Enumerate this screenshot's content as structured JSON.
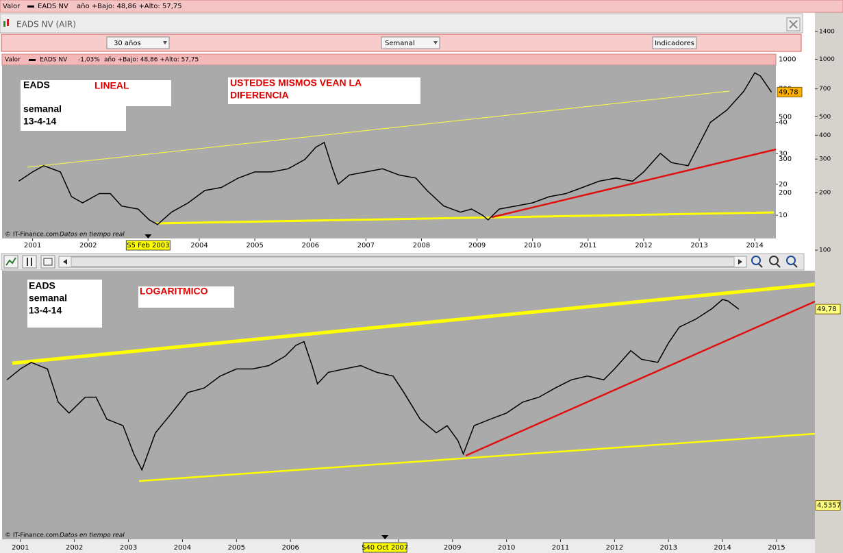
{
  "header_bar": {
    "label": "Valor",
    "symbol": "EADS NV",
    "range": "año +Bajo: 48,86 +Alto: 57,75"
  },
  "window": {
    "title": "EADS NV (AIR)"
  },
  "toolbar": {
    "period": "30 años",
    "interval": "Semanal",
    "indicators_button": "Indicadores"
  },
  "outer_axis": {
    "log": true,
    "ylim": [
      96,
      1595
    ],
    "yticks": [
      100,
      200,
      300,
      400,
      500,
      700,
      1000,
      1400
    ]
  },
  "charts": [
    {
      "type": "line",
      "color": "#000000",
      "header": {
        "label": "Valor",
        "symbol": "EADS NV",
        "change": "-1,03%",
        "range": "año +Bajo: 48,86 +Alto: 57,75"
      },
      "notes": [
        "EADS",
        "LINEAL",
        "semanal",
        "13-4-14",
        "USTEDES MISMOS  VEAN  LA",
        "DIFERENCIA"
      ],
      "x": [
        2000.75,
        2001.0,
        2001.2,
        2001.5,
        2001.7,
        2001.9,
        2002.2,
        2002.4,
        2002.6,
        2002.9,
        2003.1,
        2003.25,
        2003.5,
        2003.8,
        2004.1,
        2004.4,
        2004.7,
        2005.0,
        2005.3,
        2005.6,
        2005.9,
        2006.1,
        2006.25,
        2006.4,
        2006.5,
        2006.7,
        2007.0,
        2007.3,
        2007.6,
        2007.9,
        2008.1,
        2008.4,
        2008.7,
        2008.9,
        2009.1,
        2009.2,
        2009.4,
        2009.7,
        2010.0,
        2010.3,
        2010.6,
        2010.9,
        2011.2,
        2011.5,
        2011.8,
        2012.0,
        2012.3,
        2012.5,
        2012.8,
        2013.0,
        2013.2,
        2013.5,
        2013.8,
        2014.0,
        2014.1,
        2014.3
      ],
      "values": [
        21,
        24,
        26,
        24,
        16,
        14,
        17,
        17,
        13,
        12,
        8.5,
        7,
        11,
        14,
        18,
        19,
        22,
        24,
        24,
        25,
        28,
        32,
        33.5,
        25,
        20,
        23,
        24,
        25,
        23,
        22,
        18,
        13,
        11,
        12,
        10,
        8.5,
        12,
        13,
        14,
        16,
        17,
        19,
        21,
        22,
        21,
        24,
        30,
        27,
        26,
        33,
        40,
        44,
        50,
        56,
        55,
        49.78
      ],
      "xlim": [
        2000.45,
        2014.38
      ],
      "xticks": [
        2001,
        2002,
        2004,
        2005,
        2006,
        2007,
        2008,
        2009,
        2010,
        2011,
        2012,
        2013,
        2014
      ],
      "ylim": [
        2.5,
        58.5
      ],
      "yticks": [
        10,
        20,
        30,
        40
      ],
      "overlay_ticks": [
        200,
        300,
        500,
        700,
        1000
      ],
      "price_labels": [
        {
          "value": 49.78,
          "label": "49,78"
        }
      ],
      "cursor": {
        "value": 2003.08,
        "label": "S5 Feb 2003"
      },
      "footer": {
        "source": "© IT-Finance.com",
        "note": "Datos en tiempo real"
      }
    },
    {
      "type": "line",
      "color": "#000000",
      "log": true,
      "notes": [
        "EADS",
        "semanal",
        "13-4-14",
        "LOGARITMICO"
      ],
      "x": [
        2000.75,
        2001.0,
        2001.2,
        2001.5,
        2001.7,
        2001.9,
        2002.2,
        2002.4,
        2002.6,
        2002.9,
        2003.1,
        2003.25,
        2003.5,
        2003.8,
        2004.1,
        2004.4,
        2004.7,
        2005.0,
        2005.3,
        2005.6,
        2005.9,
        2006.1,
        2006.25,
        2006.4,
        2006.5,
        2006.7,
        2007.0,
        2007.3,
        2007.6,
        2007.9,
        2008.1,
        2008.4,
        2008.7,
        2008.9,
        2009.1,
        2009.2,
        2009.4,
        2009.7,
        2010.0,
        2010.3,
        2010.6,
        2010.9,
        2011.2,
        2011.5,
        2011.8,
        2012.0,
        2012.3,
        2012.5,
        2012.8,
        2013.0,
        2013.2,
        2013.5,
        2013.8,
        2014.0,
        2014.1,
        2014.3
      ],
      "values": [
        21,
        24,
        26,
        24,
        16,
        14,
        17,
        17,
        13,
        12,
        8.5,
        7,
        11,
        14,
        18,
        19,
        22,
        24,
        24,
        25,
        28,
        32,
        33.5,
        25,
        20,
        23,
        24,
        25,
        23,
        22,
        18,
        13,
        11,
        12,
        10,
        8.5,
        12,
        13,
        14,
        16,
        17,
        19,
        21,
        22,
        21,
        24,
        30,
        27,
        26,
        33,
        40,
        44,
        50,
        56,
        55,
        49.78
      ],
      "xlim": [
        2000.66,
        2015.71
      ],
      "xticks": [
        2001,
        2002,
        2003,
        2004,
        2005,
        2006,
        2008,
        2009,
        2010,
        2011,
        2012,
        2013,
        2014,
        2015
      ],
      "ylim": [
        3.0,
        79.6
      ],
      "price_labels": [
        {
          "value": 49.78,
          "label": "49,78"
        },
        {
          "value": 4.5357,
          "label": "4,5357"
        }
      ],
      "cursor": {
        "value": 2007.75,
        "label": "S40 Oct 2007"
      },
      "footer": {
        "source": "© IT-Finance.com",
        "note": "Datos en tiempo real"
      }
    }
  ]
}
